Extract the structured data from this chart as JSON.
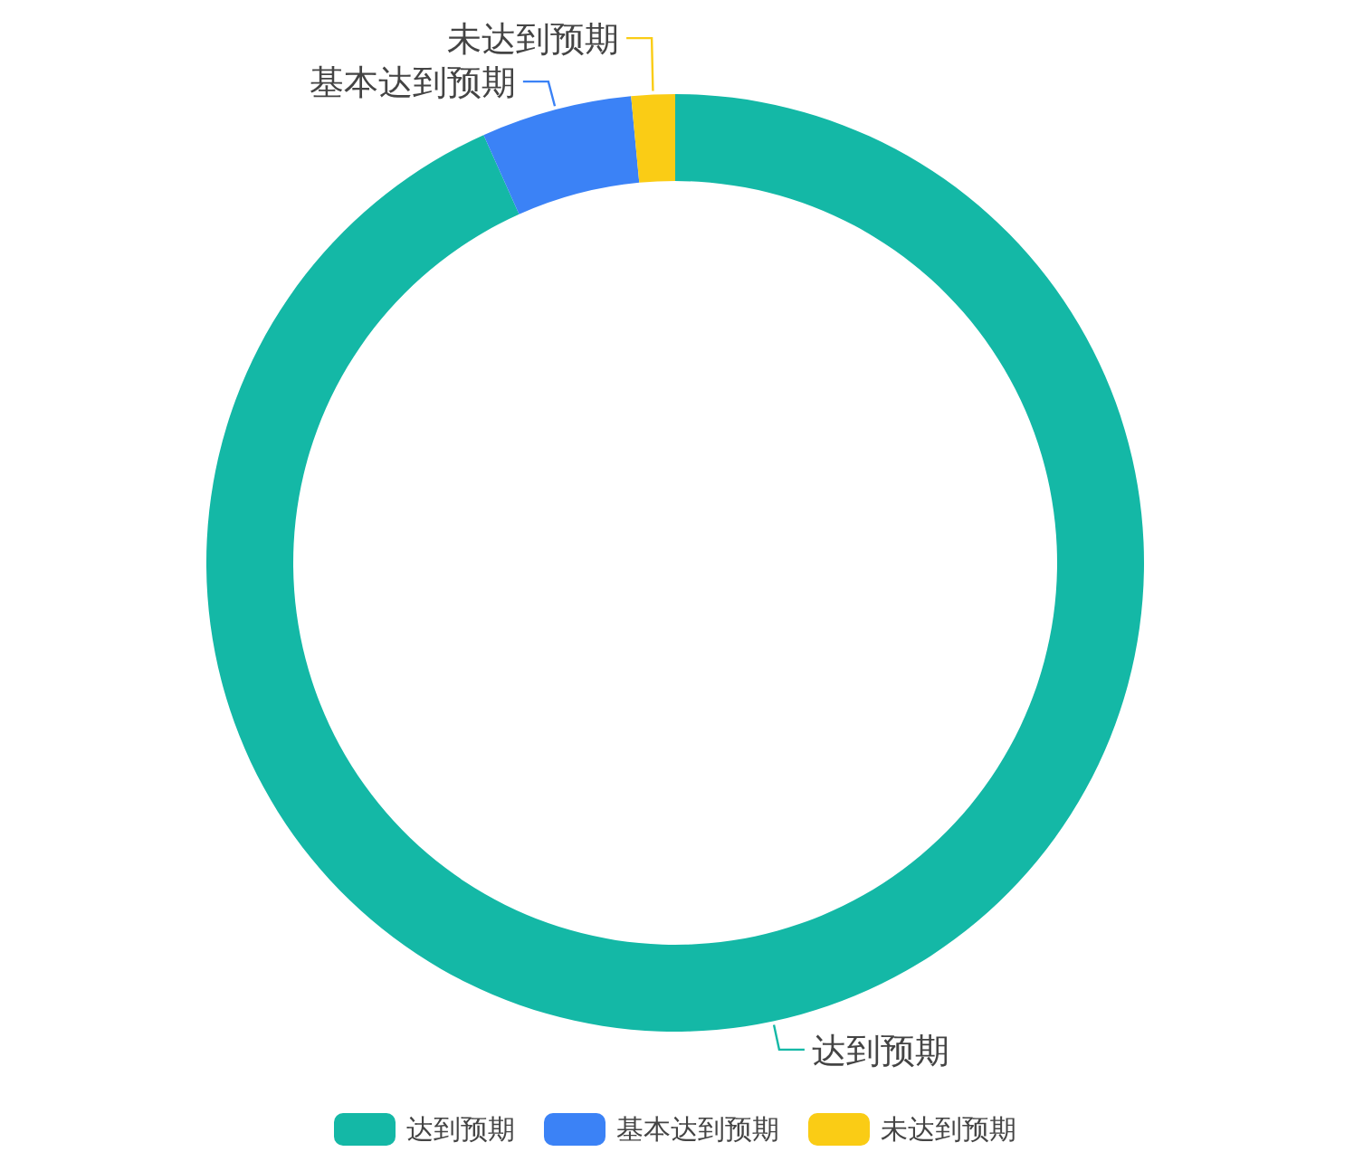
{
  "chart_data": {
    "type": "donut",
    "categories": [
      "达到预期",
      "基本达到预期",
      "未达到预期"
    ],
    "values": [
      93.3,
      5.2,
      1.5
    ],
    "colors": [
      "#14b8a6",
      "#3b82f6",
      "#facc15"
    ],
    "legend": "bottom"
  }
}
